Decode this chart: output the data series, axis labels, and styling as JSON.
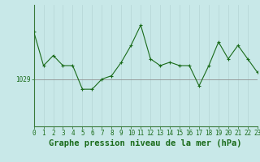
{
  "x": [
    0,
    1,
    2,
    3,
    4,
    5,
    6,
    7,
    8,
    9,
    10,
    11,
    12,
    13,
    14,
    15,
    16,
    17,
    18,
    19,
    20,
    21,
    22,
    23
  ],
  "y": [
    1036,
    1031,
    1032.5,
    1031,
    1031,
    1027.5,
    1027.5,
    1029,
    1029.5,
    1031.5,
    1034,
    1037,
    1032,
    1031,
    1031.5,
    1031,
    1031,
    1028,
    1031,
    1034.5,
    1032,
    1034,
    1032,
    1030
  ],
  "line_color": "#1a6b1a",
  "marker_color": "#1a6b1a",
  "bg_color": "#c8e8e8",
  "plot_bg_color": "#c8e8e8",
  "grid_v_color": "#b8d8d8",
  "grid_h_color": "#909090",
  "xlabel": "Graphe pression niveau de la mer (hPa)",
  "ylabel_value": 1029,
  "ylim": [
    1022,
    1040
  ],
  "xlim": [
    0,
    23
  ],
  "tick_fontsize": 5.5,
  "xlabel_fontsize": 7.5
}
